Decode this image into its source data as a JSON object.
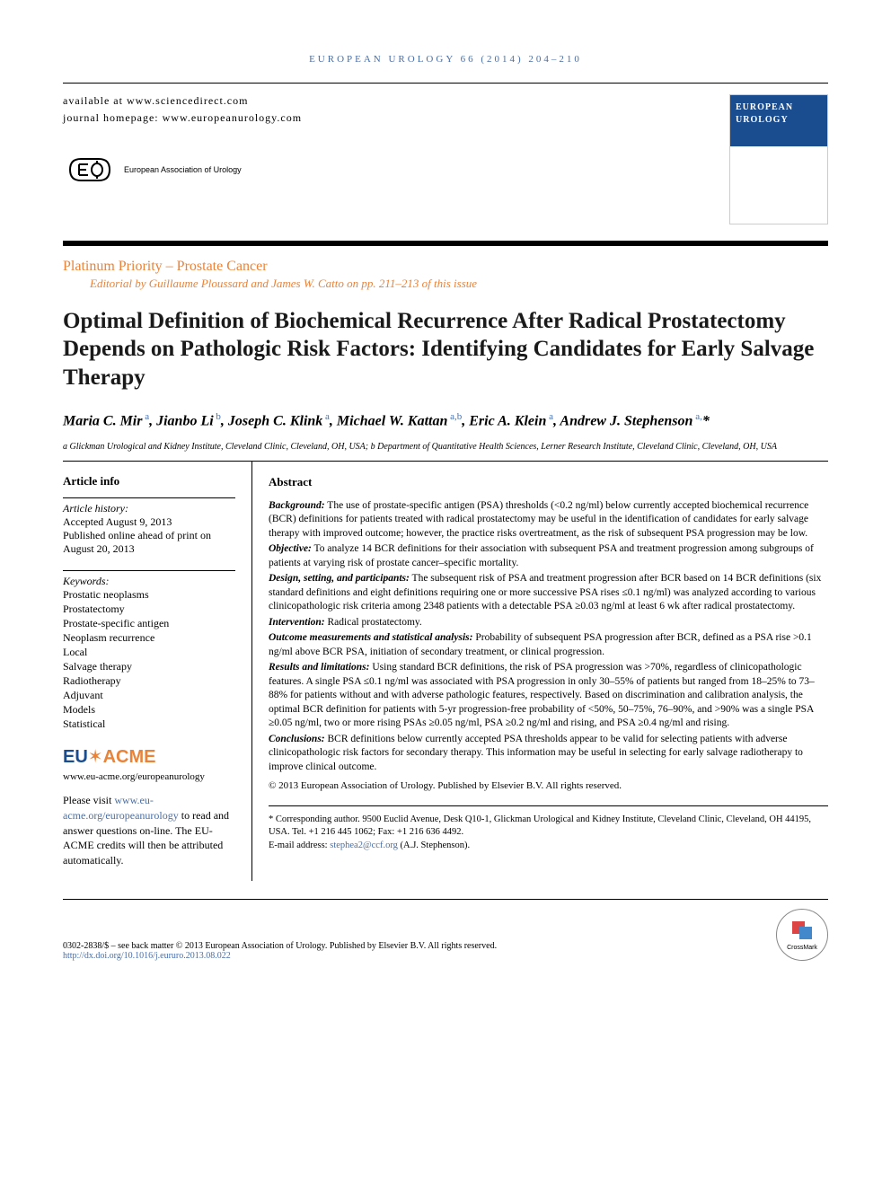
{
  "journal_header": "EUROPEAN UROLOGY 66 (2014) 204–210",
  "avail_text": "available at www.sciencedirect.com",
  "homepage_text": "journal homepage: www.europeanurology.com",
  "eau_name": "European Association of Urology",
  "cover": {
    "line1": "EUROPEAN",
    "line2": "UROLOGY"
  },
  "section_label": "Platinum Priority – Prostate Cancer",
  "editorial_line": "Editorial by Guillaume Ploussard and James W. Catto on pp. 211–213 of this issue",
  "title": "Optimal Definition of Biochemical Recurrence After Radical Prostatectomy Depends on Pathologic Risk Factors: Identifying Candidates for Early Salvage Therapy",
  "authors_html": "Maria C. Mir<sup> a</sup>, Jianbo Li<sup> b</sup>, Joseph C. Klink<sup> a</sup>, Michael W. Kattan<sup> a,b</sup>, Eric A. Klein<sup> a</sup>, Andrew J. Stephenson<sup> a,</sup>*",
  "affiliations": "a Glickman Urological and Kidney Institute, Cleveland Clinic, Cleveland, OH, USA; b Department of Quantitative Health Sciences, Lerner Research Institute, Cleveland Clinic, Cleveland, OH, USA",
  "article_info": {
    "heading": "Article info",
    "history_label": "Article history:",
    "history_text": "Accepted August 9, 2013",
    "pub_online": "Published online ahead of print on August 20, 2013",
    "keywords_label": "Keywords:",
    "keywords": [
      "Prostatic neoplasms",
      "Prostatectomy",
      "Prostate-specific antigen",
      "Neoplasm recurrence",
      "Local",
      "Salvage therapy",
      "Radiotherapy",
      "Adjuvant",
      "Models",
      "Statistical"
    ],
    "euacme_url": "www.eu-acme.org/europeanurology",
    "please_visit_pre": "Please visit ",
    "please_visit_link": "www.eu-acme.org/europeanurology",
    "please_visit_post": " to read and answer questions on-line. The EU-ACME credits will then be attributed automatically."
  },
  "abstract": {
    "heading": "Abstract",
    "background_label": "Background:",
    "background": " The use of prostate-specific antigen (PSA) thresholds (<0.2 ng/ml) below currently accepted biochemical recurrence (BCR) definitions for patients treated with radical prostatectomy may be useful in the identification of candidates for early salvage therapy with improved outcome; however, the practice risks overtreatment, as the risk of subsequent PSA progression may be low.",
    "objective_label": "Objective:",
    "objective": " To analyze 14 BCR definitions for their association with subsequent PSA and treatment progression among subgroups of patients at varying risk of prostate cancer–specific mortality.",
    "design_label": "Design, setting, and participants:",
    "design": " The subsequent risk of PSA and treatment progression after BCR based on 14 BCR definitions (six standard definitions and eight definitions requiring one or more successive PSA rises ≤0.1 ng/ml) was analyzed according to various clinicopathologic risk criteria among 2348 patients with a detectable PSA ≥0.03 ng/ml at least 6 wk after radical prostatectomy.",
    "intervention_label": "Intervention:",
    "intervention": " Radical prostatectomy.",
    "outcome_label": "Outcome measurements and statistical analysis:",
    "outcome": " Probability of subsequent PSA progression after BCR, defined as a PSA rise >0.1 ng/ml above BCR PSA, initiation of secondary treatment, or clinical progression.",
    "results_label": "Results and limitations:",
    "results": " Using standard BCR definitions, the risk of PSA progression was >70%, regardless of clinicopathologic features. A single PSA ≤0.1 ng/ml was associated with PSA progression in only 30–55% of patients but ranged from 18–25% to 73–88% for patients without and with adverse pathologic features, respectively. Based on discrimination and calibration analysis, the optimal BCR definition for patients with 5-yr progression-free probability of <50%, 50–75%, 76–90%, and >90% was a single PSA ≥0.05 ng/ml, two or more rising PSAs ≥0.05 ng/ml, PSA ≥0.2 ng/ml and rising, and PSA ≥0.4 ng/ml and rising.",
    "conclusions_label": "Conclusions:",
    "conclusions": " BCR definitions below currently accepted PSA thresholds appear to be valid for selecting patients with adverse clinicopathologic risk factors for secondary therapy. This information may be useful in selecting for early salvage radiotherapy to improve clinical outcome.",
    "copyright": "© 2013 European Association of Urology. Published by Elsevier B.V. All rights reserved."
  },
  "corresponding": {
    "text": "* Corresponding author. 9500 Euclid Avenue, Desk Q10-1, Glickman Urological and Kidney Institute, Cleveland Clinic, Cleveland, OH 44195, USA. Tel. +1 216 445 1062; Fax: +1 216 636 4492.",
    "email_label": "E-mail address: ",
    "email": "stephea2@ccf.org",
    "email_suffix": " (A.J. Stephenson)."
  },
  "footer": {
    "line1": "0302-2838/$ – see back matter © 2013 European Association of Urology. Published by Elsevier B.V. All rights reserved.",
    "doi": "http://dx.doi.org/10.1016/j.eururo.2013.08.022",
    "crossmark": "CrossMark"
  },
  "colors": {
    "accent_orange": "#e8833a",
    "link_blue": "#4a6fa5",
    "cover_blue": "#1a4d8f"
  }
}
